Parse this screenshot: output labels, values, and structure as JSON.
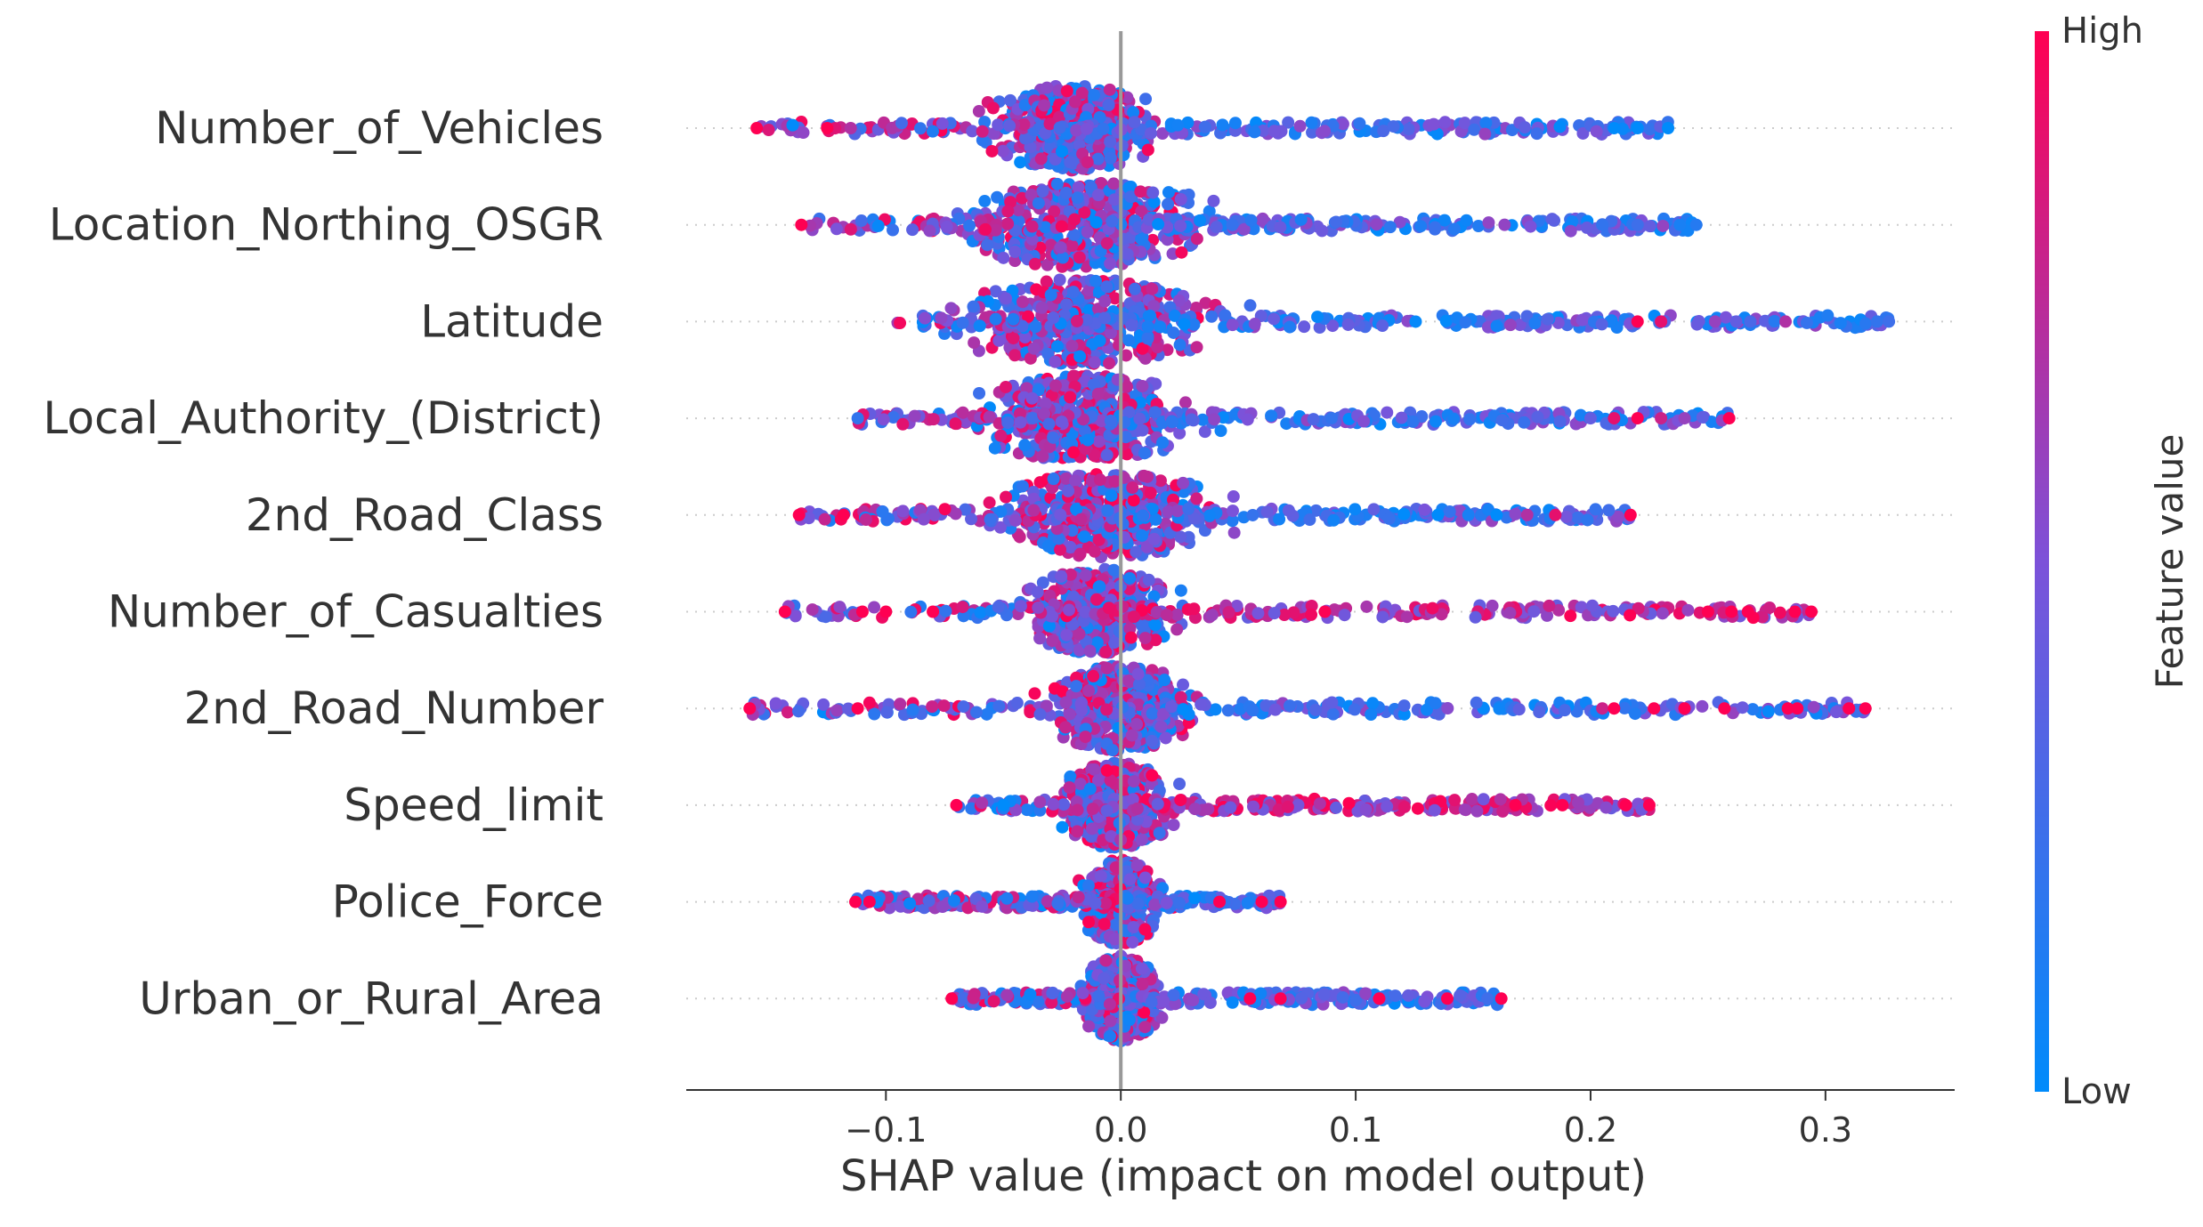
{
  "chart_data": {
    "type": "scatter",
    "subtype": "shap-beeswarm",
    "title": "",
    "xlabel": "SHAP value (impact on model output)",
    "ylabel": "",
    "xlim": [
      -0.185,
      0.355
    ],
    "xticks": [
      -0.1,
      0.0,
      0.1,
      0.2,
      0.3
    ],
    "xtick_labels": [
      "−0.1",
      "0.0",
      "0.1",
      "0.2",
      "0.3"
    ],
    "zero_line": 0.0,
    "features": [
      {
        "name": "Number_of_Vehicles",
        "min": -0.155,
        "max": 0.233,
        "center": -0.02,
        "spread": 0.05,
        "outliers": [
          {
            "x": -0.155,
            "v": 1.0
          },
          {
            "x": -0.125,
            "v": 1.0
          },
          {
            "x": -0.115,
            "v": 0.7
          },
          {
            "x": 0.21,
            "v": 0.0
          },
          {
            "x": 0.22,
            "v": 0.0
          },
          {
            "x": 0.233,
            "v": 0.0
          }
        ]
      },
      {
        "name": "Location_Northing_OSGR",
        "min": -0.136,
        "max": 0.245,
        "center": -0.015,
        "spread": 0.07,
        "outliers": [
          {
            "x": -0.136,
            "v": 1.0
          },
          {
            "x": 0.205,
            "v": 0.2
          },
          {
            "x": 0.22,
            "v": 0.25
          },
          {
            "x": 0.238,
            "v": 0.1
          },
          {
            "x": 0.245,
            "v": 0.15
          }
        ]
      },
      {
        "name": "Latitude",
        "min": -0.105,
        "max": 0.327,
        "center": -0.015,
        "spread": 0.07,
        "outliers": [
          {
            "x": 0.22,
            "v": 1.0
          },
          {
            "x": 0.23,
            "v": 0.9
          },
          {
            "x": 0.253,
            "v": 0.6
          },
          {
            "x": 0.262,
            "v": 0.4
          },
          {
            "x": 0.268,
            "v": 0.3
          },
          {
            "x": 0.283,
            "v": 0.7
          },
          {
            "x": 0.322,
            "v": 0.2
          },
          {
            "x": 0.327,
            "v": 0.25
          }
        ]
      },
      {
        "name": "Local_Authority_(District)",
        "min": -0.112,
        "max": 0.259,
        "center": -0.015,
        "spread": 0.06,
        "outliers": [
          {
            "x": -0.112,
            "v": 0.2
          },
          {
            "x": 0.2,
            "v": 0.4
          },
          {
            "x": 0.21,
            "v": 0.9
          },
          {
            "x": 0.22,
            "v": 1.0
          },
          {
            "x": 0.23,
            "v": 0.8
          },
          {
            "x": 0.24,
            "v": 0.6
          },
          {
            "x": 0.259,
            "v": 1.0
          }
        ]
      },
      {
        "name": "2nd_Road_Class",
        "min": -0.137,
        "max": 0.217,
        "center": -0.005,
        "spread": 0.06,
        "outliers": [
          {
            "x": -0.137,
            "v": 1.0
          },
          {
            "x": -0.118,
            "v": 1.0
          },
          {
            "x": 0.135,
            "v": 0.0
          },
          {
            "x": 0.148,
            "v": 0.1
          },
          {
            "x": 0.16,
            "v": 0.0
          },
          {
            "x": 0.173,
            "v": 0.7
          },
          {
            "x": 0.185,
            "v": 0.9
          },
          {
            "x": 0.217,
            "v": 1.0
          }
        ]
      },
      {
        "name": "Number_of_Casualties",
        "min": -0.143,
        "max": 0.294,
        "center": -0.01,
        "spread": 0.04,
        "outliers": [
          {
            "x": -0.143,
            "v": 1.0
          },
          {
            "x": -0.11,
            "v": 1.0
          },
          {
            "x": -0.1,
            "v": 1.0
          },
          {
            "x": -0.08,
            "v": 1.0
          },
          {
            "x": 0.25,
            "v": 1.0
          },
          {
            "x": 0.26,
            "v": 1.0
          },
          {
            "x": 0.267,
            "v": 1.0
          },
          {
            "x": 0.287,
            "v": 1.0
          },
          {
            "x": 0.294,
            "v": 1.0
          }
        ]
      },
      {
        "name": "2nd_Road_Number",
        "min": -0.158,
        "max": 0.317,
        "center": 0.0,
        "spread": 0.04,
        "outliers": [
          {
            "x": -0.158,
            "v": 1.0
          },
          {
            "x": -0.112,
            "v": 1.0
          },
          {
            "x": 0.205,
            "v": 0.8
          },
          {
            "x": 0.21,
            "v": 1.0
          },
          {
            "x": 0.227,
            "v": 1.0
          },
          {
            "x": 0.24,
            "v": 1.0
          },
          {
            "x": 0.257,
            "v": 1.0
          },
          {
            "x": 0.284,
            "v": 1.0
          },
          {
            "x": 0.288,
            "v": 1.0
          },
          {
            "x": 0.31,
            "v": 1.0
          },
          {
            "x": 0.317,
            "v": 1.0
          }
        ]
      },
      {
        "name": "Speed_limit",
        "min": -0.07,
        "max": 0.225,
        "center": -0.002,
        "spread": 0.03,
        "outliers": [
          {
            "x": -0.07,
            "v": 1.0
          },
          {
            "x": -0.05,
            "v": 0.0
          },
          {
            "x": 0.168,
            "v": 1.0
          },
          {
            "x": 0.188,
            "v": 1.0
          },
          {
            "x": 0.215,
            "v": 1.0
          },
          {
            "x": 0.225,
            "v": 1.0
          }
        ]
      },
      {
        "name": "Police_Force",
        "min": -0.113,
        "max": 0.068,
        "center": 0.0,
        "spread": 0.02,
        "outliers": [
          {
            "x": -0.113,
            "v": 1.0
          },
          {
            "x": -0.107,
            "v": 1.0
          },
          {
            "x": 0.042,
            "v": 1.0
          },
          {
            "x": 0.06,
            "v": 1.0
          },
          {
            "x": 0.068,
            "v": 1.0
          }
        ]
      },
      {
        "name": "Urban_or_Rural_Area",
        "min": -0.072,
        "max": 0.162,
        "center": 0.0,
        "spread": 0.02,
        "outliers": [
          {
            "x": -0.072,
            "v": 1.0
          },
          {
            "x": 0.055,
            "v": 1.0
          },
          {
            "x": 0.068,
            "v": 1.0
          },
          {
            "x": 0.11,
            "v": 1.0
          },
          {
            "x": 0.139,
            "v": 1.0
          },
          {
            "x": 0.162,
            "v": 1.0
          }
        ]
      }
    ],
    "colorbar": {
      "label": "Feature value",
      "high_label": "High",
      "low_label": "Low",
      "high_color": "#ff0052",
      "low_color": "#008bfb"
    }
  }
}
